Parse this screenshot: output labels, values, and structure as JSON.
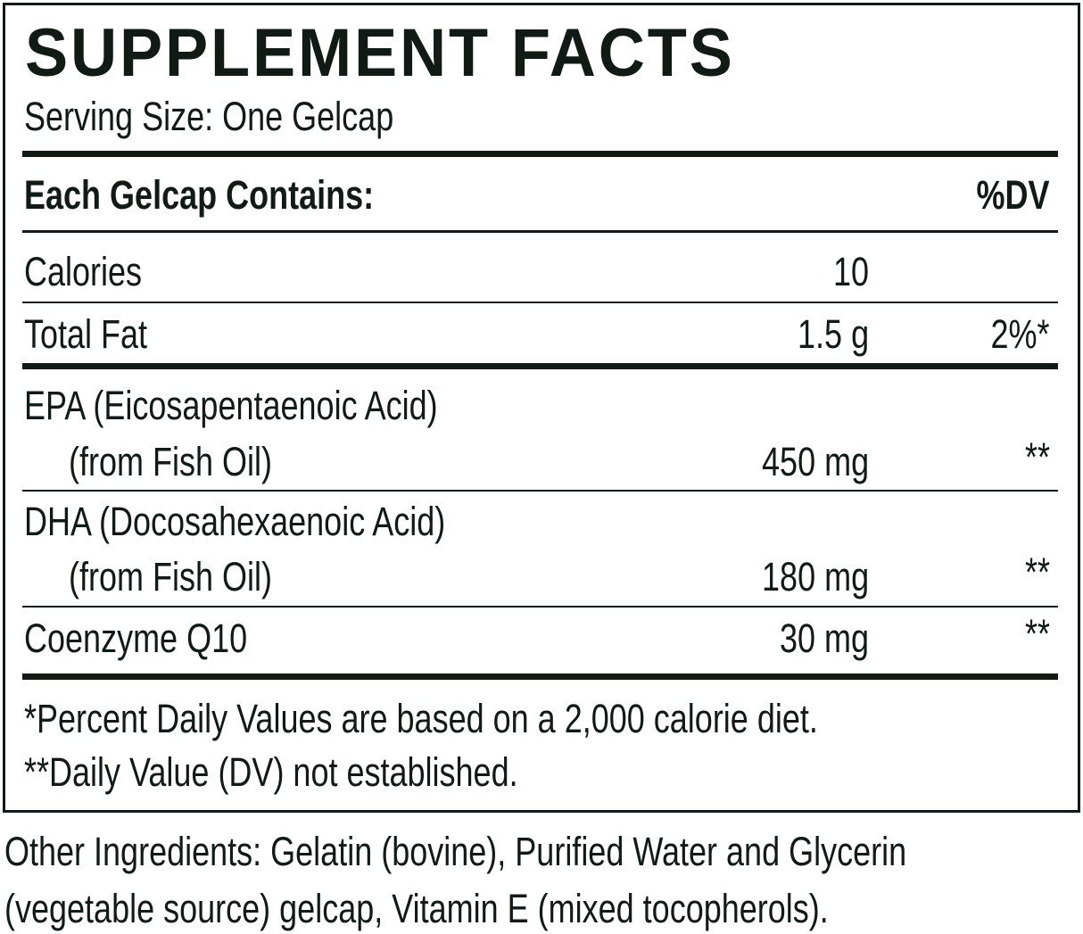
{
  "title": "SUPPLEMENT FACTS",
  "serving_size": "Serving Size: One Gelcap",
  "header": {
    "left": "Each Gelcap Contains:",
    "right": "%DV"
  },
  "rows": [
    {
      "name": "Calories",
      "amount": "10",
      "dv": ""
    },
    {
      "name": "Total Fat",
      "amount": "1.5 g",
      "dv": "2%*"
    },
    {
      "name": "EPA (Eicosapentaenoic Acid)",
      "sub": "(from Fish Oil)",
      "amount": "450 mg",
      "dv": "**"
    },
    {
      "name": "DHA (Docosahexaenoic Acid)",
      "sub": "(from Fish Oil)",
      "amount": "180 mg",
      "dv": "**"
    },
    {
      "name": "Coenzyme Q10",
      "amount": "30 mg",
      "dv": "**"
    }
  ],
  "footnotes": [
    "*Percent Daily Values are based on a 2,000 calorie diet.",
    "**Daily Value (DV) not established."
  ],
  "other_ingredients": [
    "Other Ingredients: Gelatin (bovine), Purified Water and Glycerin",
    "(vegetable source) gelcap, Vitamin E (mixed tocopherols)."
  ],
  "colors": {
    "text": "#111a15",
    "background": "#ffffff"
  }
}
